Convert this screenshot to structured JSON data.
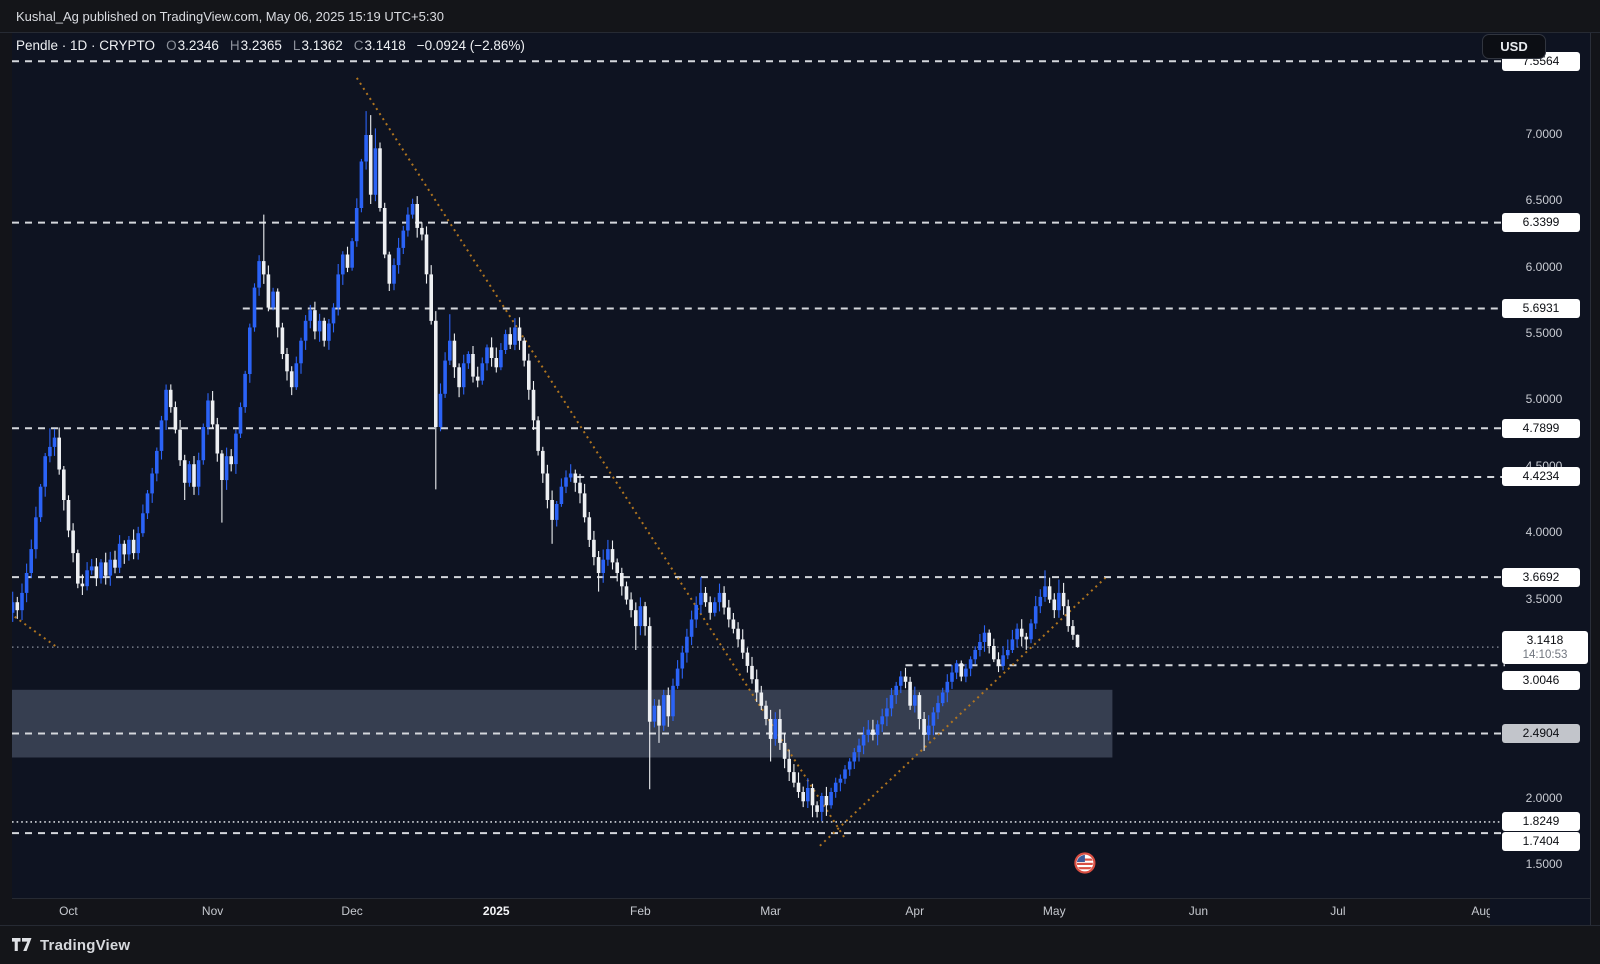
{
  "published_bar": {
    "text": "Kushal_Ag published on TradingView.com, May 06, 2025 15:19 UTC+5:30"
  },
  "toolbar": {
    "currency_label": "USD"
  },
  "legend": {
    "series_title": "Pendle · 1D · CRYPTO",
    "o_key": "O",
    "o_val": "3.2346",
    "h_key": "H",
    "h_val": "3.2365",
    "l_key": "L",
    "l_val": "3.1362",
    "c_key": "C",
    "c_val": "3.1418",
    "change": "−0.0924 (−2.86%)"
  },
  "footer": {
    "brand": "TradingView"
  },
  "axis": {
    "price_ticks": [
      {
        "label": "7.0000",
        "price": 7.0
      },
      {
        "label": "6.5000",
        "price": 6.5
      },
      {
        "label": "6.0000",
        "price": 6.0
      },
      {
        "label": "5.5000",
        "price": 5.5
      },
      {
        "label": "5.0000",
        "price": 5.0
      },
      {
        "label": "4.5000",
        "price": 4.5
      },
      {
        "label": "4.0000",
        "price": 4.0
      },
      {
        "label": "3.5000",
        "price": 3.5
      },
      {
        "label": "2.0000",
        "price": 2.0
      },
      {
        "label": "1.5000",
        "price": 1.5
      }
    ],
    "months": [
      {
        "label": "Oct",
        "i": 13
      },
      {
        "label": "Nov",
        "i": 44
      },
      {
        "label": "Dec",
        "i": 74
      },
      {
        "label": "2025",
        "i": 105,
        "bold": true
      },
      {
        "label": "Feb",
        "i": 136
      },
      {
        "label": "Mar",
        "i": 164
      },
      {
        "label": "Apr",
        "i": 195
      },
      {
        "label": "May",
        "i": 225
      },
      {
        "label": "Jun",
        "i": 256
      },
      {
        "label": "Jul",
        "i": 286
      },
      {
        "label": "Aug",
        "i": 317
      }
    ]
  },
  "chart_data": {
    "type": "candlestick",
    "title": "Pendle · 1D · CRYPTO (quoted in USD)",
    "interval": "1D",
    "ylim": [
      1.27,
      7.77
    ],
    "grid": false,
    "up_color": "#2b63f6",
    "down_color": "#edeff2",
    "trendline_color": "#b0751f",
    "zone_color": "rgba(150,162,190,0.30)",
    "open_first": 3.35,
    "closes": [
      3.4,
      3.48,
      3.42,
      3.55,
      3.7,
      3.88,
      4.12,
      4.35,
      4.58,
      4.65,
      4.72,
      4.48,
      4.25,
      4.02,
      3.85,
      3.62,
      3.6,
      3.72,
      3.75,
      3.66,
      3.78,
      3.68,
      3.8,
      3.74,
      3.92,
      3.84,
      3.95,
      3.85,
      4.0,
      4.15,
      4.3,
      4.45,
      4.62,
      4.85,
      5.08,
      4.95,
      4.78,
      4.55,
      4.38,
      4.52,
      4.35,
      4.55,
      4.8,
      5.0,
      4.82,
      4.6,
      4.4,
      4.58,
      4.52,
      4.75,
      4.95,
      5.2,
      5.55,
      5.85,
      6.05,
      5.95,
      5.7,
      5.82,
      5.55,
      5.35,
      5.22,
      5.1,
      5.28,
      5.45,
      5.6,
      5.68,
      5.52,
      5.6,
      5.45,
      5.58,
      5.7,
      5.95,
      6.1,
      6.0,
      6.2,
      6.45,
      6.8,
      7.0,
      6.55,
      6.9,
      6.45,
      6.1,
      5.88,
      6.02,
      6.15,
      6.28,
      6.4,
      6.48,
      6.3,
      6.25,
      5.95,
      5.6,
      4.8,
      5.05,
      5.3,
      5.45,
      5.25,
      5.1,
      5.28,
      5.35,
      5.18,
      5.15,
      5.28,
      5.4,
      5.32,
      5.25,
      5.38,
      5.5,
      5.42,
      5.55,
      5.45,
      5.3,
      5.08,
      4.85,
      4.62,
      4.45,
      4.25,
      4.1,
      4.22,
      4.35,
      4.42,
      4.45,
      4.38,
      4.3,
      4.12,
      3.95,
      3.82,
      3.7,
      3.8,
      3.88,
      3.78,
      3.7,
      3.6,
      3.5,
      3.42,
      3.3,
      3.45,
      3.3,
      2.58,
      2.7,
      2.55,
      2.78,
      2.62,
      2.85,
      2.98,
      3.1,
      3.22,
      3.35,
      3.46,
      3.55,
      3.48,
      3.4,
      3.48,
      3.55,
      3.44,
      3.35,
      3.28,
      3.2,
      3.1,
      3.0,
      2.9,
      2.8,
      2.7,
      2.6,
      2.45,
      2.6,
      2.42,
      2.3,
      2.2,
      2.12,
      2.05,
      1.98,
      2.08,
      1.95,
      1.9,
      2.02,
      1.95,
      2.05,
      2.12,
      2.15,
      2.22,
      2.28,
      2.35,
      2.4,
      2.48,
      2.52,
      2.48,
      2.56,
      2.62,
      2.68,
      2.78,
      2.85,
      2.92,
      2.88,
      2.7,
      2.78,
      2.6,
      2.48,
      2.55,
      2.65,
      2.72,
      2.8,
      2.88,
      2.95,
      3.02,
      2.92,
      2.98,
      3.05,
      3.12,
      3.18,
      3.25,
      3.15,
      3.05,
      3.0,
      3.08,
      3.12,
      3.2,
      3.28,
      3.22,
      3.2,
      3.32,
      3.45,
      3.52,
      3.6,
      3.5,
      3.42,
      3.55,
      3.45,
      3.3,
      3.2346,
      3.1418
    ],
    "wick_overrides": {
      "9": {
        "h": 4.79
      },
      "34": {
        "h": 5.12
      },
      "38": {
        "l": 4.25
      },
      "46": {
        "l": 4.08
      },
      "55": {
        "h": 6.4
      },
      "65": {
        "h": 5.72
      },
      "77": {
        "h": 7.18
      },
      "78": {
        "h": 7.15
      },
      "79": {
        "h": 7.05
      },
      "92": {
        "l": 4.33
      },
      "95": {
        "h": 5.65
      },
      "109": {
        "h": 5.62
      },
      "117": {
        "l": 3.92
      },
      "121": {
        "h": 4.52
      },
      "127": {
        "l": 3.56
      },
      "135": {
        "l": 3.12
      },
      "138": {
        "l": 2.07
      },
      "140": {
        "l": 2.42
      },
      "149": {
        "h": 3.67
      },
      "153": {
        "h": 3.62
      },
      "164": {
        "l": 2.28
      },
      "173": {
        "l": 1.86
      },
      "176": {
        "l": 1.87
      },
      "197": {
        "l": 2.36
      },
      "223": {
        "h": 3.72
      },
      "226": {
        "h": 3.65
      },
      "230": {
        "h": 3.2365,
        "l": 3.1362
      }
    },
    "last_candle": {
      "open": 3.2346,
      "high": 3.2365,
      "low": 3.1362,
      "close": 3.1418
    },
    "current_price_label": "3.1418",
    "countdown": "14:10:53",
    "levels": [
      {
        "price": 7.5564,
        "label": "7.5564",
        "style": "dashed"
      },
      {
        "price": 6.3399,
        "label": "6.3399",
        "style": "dashed"
      },
      {
        "price": 5.6931,
        "label": "5.6931",
        "style": "dashed",
        "from_i": 50.5
      },
      {
        "price": 4.7899,
        "label": "4.7899",
        "style": "dashed"
      },
      {
        "price": 4.4234,
        "label": "4.4234",
        "style": "dashed",
        "from_i": 122.4
      },
      {
        "price": 3.6692,
        "label": "3.6692",
        "style": "dashed"
      },
      {
        "price": 3.0046,
        "label": "3.0046",
        "style": "dashed",
        "from_i": 193,
        "label_dy": 15
      },
      {
        "price": 2.4904,
        "label": "2.4904",
        "style": "dashed",
        "label_bg": "#c2c5cb"
      },
      {
        "price": 1.8249,
        "label": "1.8249",
        "style": "dotted"
      },
      {
        "price": 1.7404,
        "label": "1.7404",
        "style": "dashed",
        "label_dy": 8
      }
    ],
    "price_line": {
      "price": 3.1418,
      "style": "dotted"
    },
    "zone": {
      "price_top": 2.82,
      "price_bottom": 2.31,
      "to_i": 237.5
    },
    "trendlines": [
      {
        "i1": 75,
        "p1": 7.43,
        "i2": 180,
        "p2": 1.7
      },
      {
        "i1": 174.6,
        "p1": 1.645,
        "i2": 236,
        "p2": 3.664
      },
      {
        "i1": -1.7,
        "p1": 3.45,
        "i2": 10.5,
        "p2": 3.142
      }
    ],
    "event_marker": {
      "i": 231.6,
      "price": 1.515,
      "type": "us-flag-economic-event"
    }
  }
}
